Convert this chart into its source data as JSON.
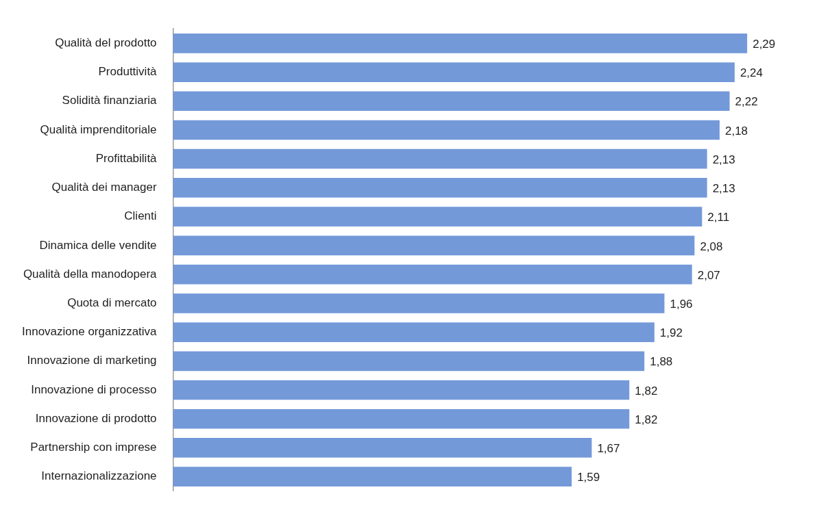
{
  "chart_data": {
    "type": "bar",
    "orientation": "horizontal",
    "categories": [
      "Qualità del prodotto",
      "Produttività",
      "Solidità finanziaria",
      "Qualità imprenditoriale",
      "Profittabilità",
      "Qualità dei manager",
      "Clienti",
      "Dinamica delle vendite",
      "Qualità della manodopera",
      "Quota di mercato",
      "Innovazione organizzativa",
      "Innovazione di marketing",
      "Innovazione di processo",
      "Innovazione di prodotto",
      "Partnership con imprese",
      "Internazionalizzazione"
    ],
    "values": [
      2.29,
      2.24,
      2.22,
      2.18,
      2.13,
      2.13,
      2.11,
      2.08,
      2.07,
      1.96,
      1.92,
      1.88,
      1.82,
      1.82,
      1.67,
      1.59
    ],
    "value_labels": [
      "2,29",
      "2,24",
      "2,22",
      "2,18",
      "2,13",
      "2,13",
      "2,11",
      "2,08",
      "2,07",
      "1,96",
      "1,92",
      "1,88",
      "1,82",
      "1,82",
      "1,67",
      "1,59"
    ],
    "color": "#7399d9",
    "grid": false,
    "legend": false,
    "tick_labels": "y"
  }
}
